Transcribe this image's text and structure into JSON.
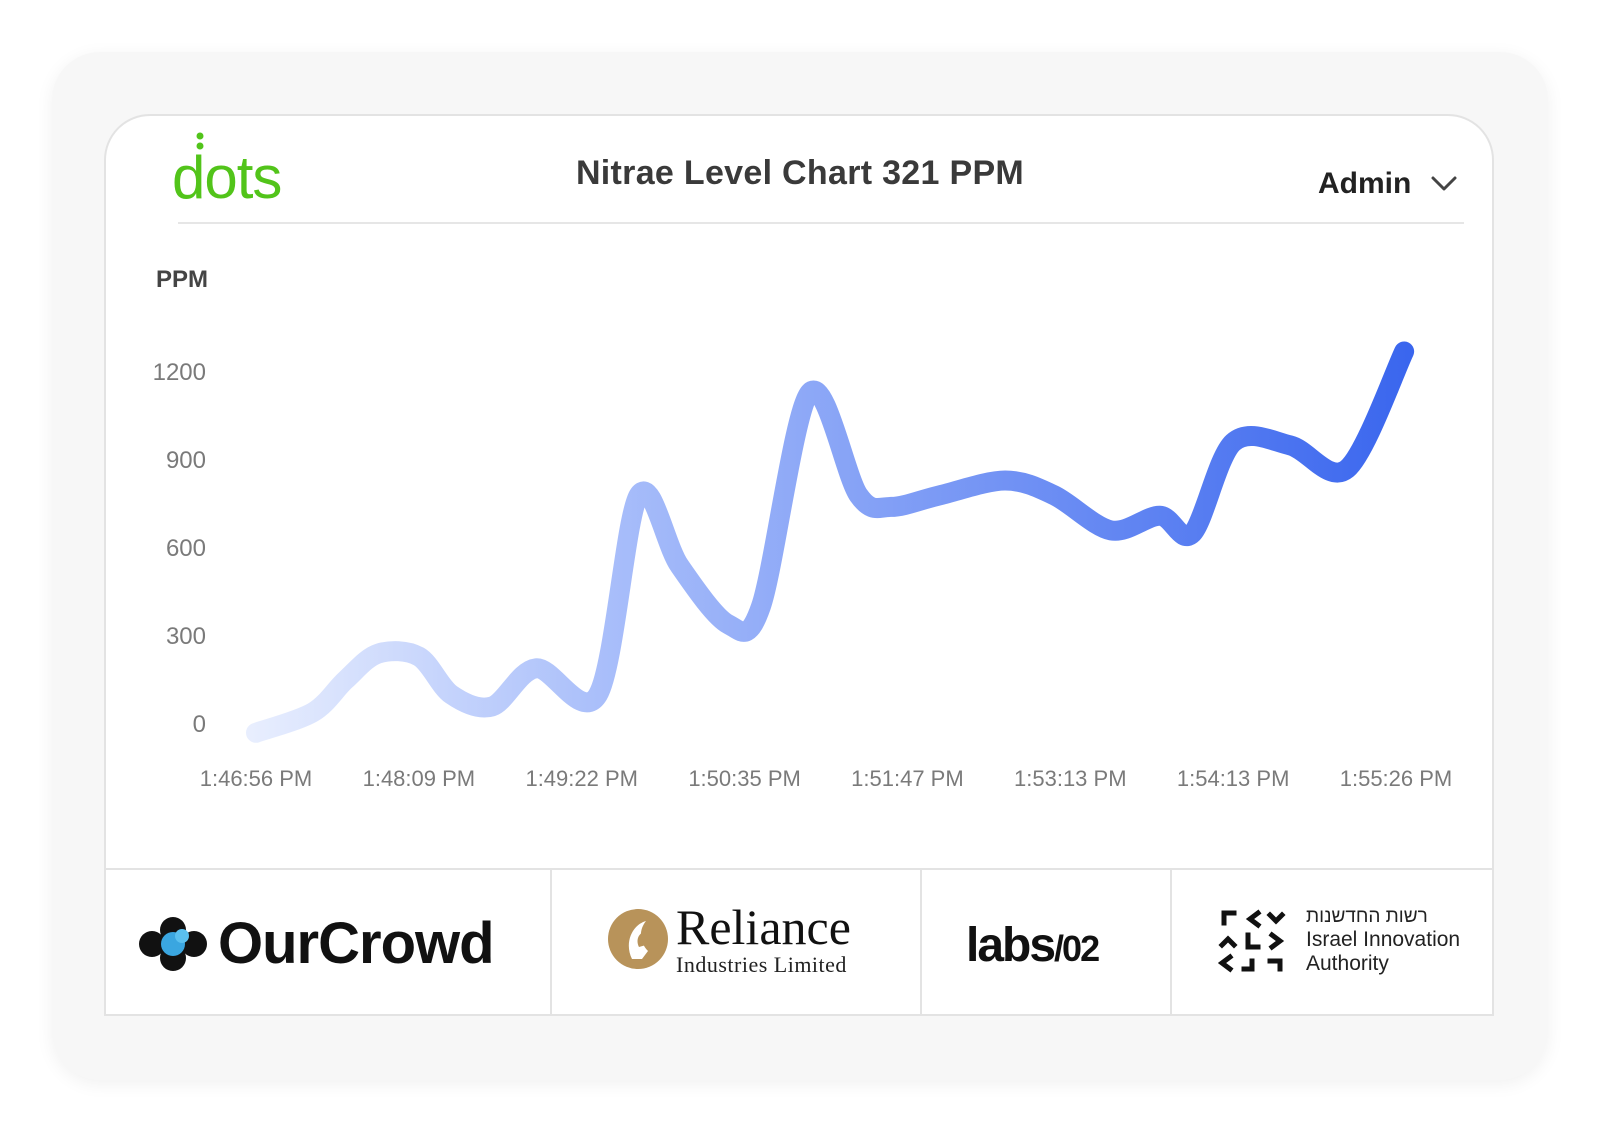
{
  "header": {
    "logo_text": "dots",
    "title": "Nitrae Level Chart 321 PPM",
    "user_name": "Admin"
  },
  "colors": {
    "logo_green": "#52c41a",
    "line_start": "#dfe7fd",
    "line_end": "#3a66ee"
  },
  "chart_data": {
    "type": "line",
    "title": "Nitrae Level Chart 321 PPM",
    "ylabel": "PPM",
    "xlabel": "",
    "ylim": [
      0,
      1200
    ],
    "yticks": [
      0,
      300,
      600,
      900,
      1200
    ],
    "grid": false,
    "legend": "none",
    "xtick_labels": [
      "1:46:56 PM",
      "1:48:09 PM",
      "1:49:22 PM",
      "1:50:35 PM",
      "1:51:47 PM",
      "1:53:13 PM",
      "1:54:13 PM",
      "1:55:26 PM"
    ],
    "x": [
      0,
      0.35,
      0.55,
      0.75,
      1.0,
      1.2,
      1.45,
      1.72,
      2.1,
      2.35,
      2.6,
      2.9,
      3.1,
      3.4,
      3.7,
      3.9,
      4.2,
      4.6,
      4.9,
      5.25,
      5.55,
      5.75,
      6.0,
      6.35,
      6.7,
      7.05
    ],
    "values": [
      -30,
      40,
      150,
      240,
      230,
      100,
      60,
      190,
      100,
      780,
      540,
      340,
      400,
      1130,
      780,
      740,
      780,
      830,
      780,
      660,
      710,
      650,
      960,
      950,
      870,
      1270
    ],
    "series": [
      {
        "values": "values"
      }
    ]
  },
  "sponsors": [
    {
      "name": "OurCrowd"
    },
    {
      "name": "Reliance",
      "sub": "Industries Limited"
    },
    {
      "name": "labs",
      "suffix": "/02"
    },
    {
      "he": "רשות החדשנות",
      "en1": "Israel Innovation",
      "en2": "Authority"
    }
  ]
}
